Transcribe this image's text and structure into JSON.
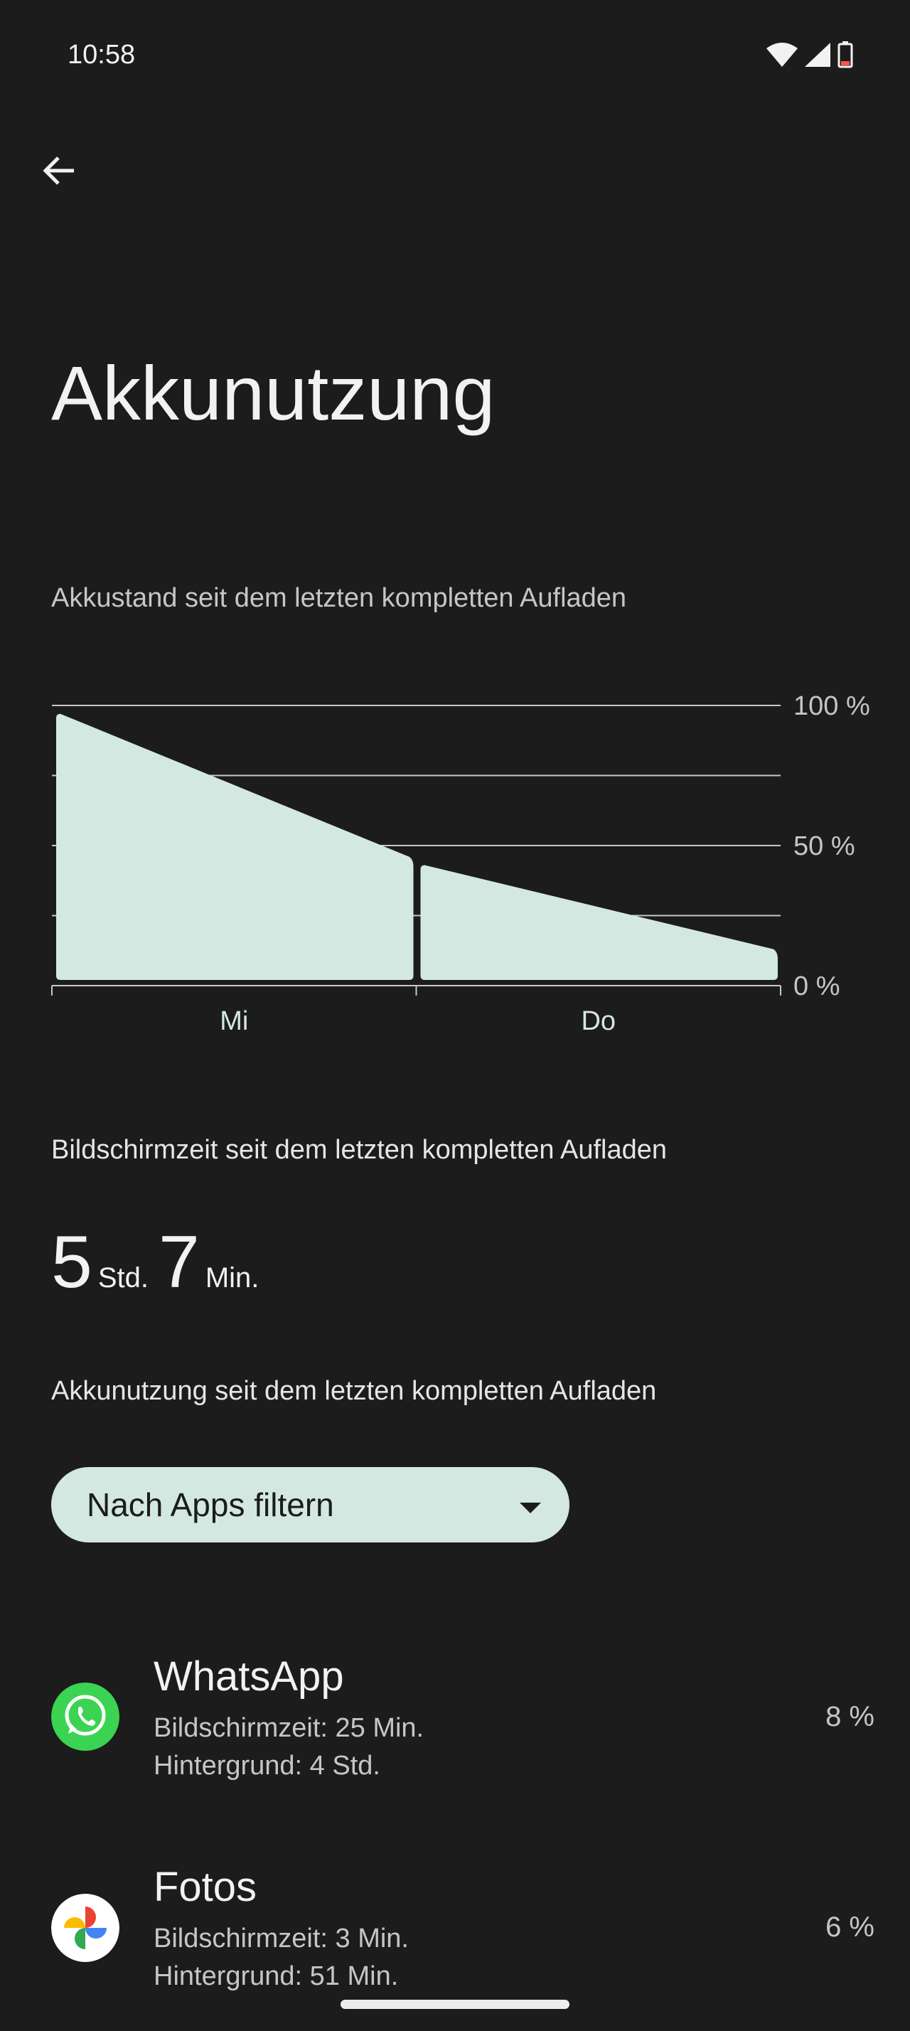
{
  "status_bar": {
    "time": "10:58",
    "icons": [
      "wifi-icon",
      "signal-icon",
      "battery-low-icon"
    ],
    "battery_color": "#ff5449"
  },
  "header": {
    "back_icon": "arrow-back-icon",
    "title": "Akkunutzung"
  },
  "chart_section": {
    "subtitle": "Akkustand seit dem letzten kompletten Aufladen"
  },
  "chart_data": {
    "type": "area",
    "title": "",
    "ylim": [
      0,
      100
    ],
    "y_ticks": [
      0,
      25,
      50,
      75,
      100
    ],
    "y_tick_labels": [
      "100 %",
      "50 %",
      "0 %"
    ],
    "x_tick_labels": [
      "Mi",
      "Do"
    ],
    "grid": true,
    "fill_color": "#d3e8e1",
    "segments": [
      {
        "day": "Mi",
        "start": 97,
        "end": 46
      },
      {
        "day": "Do",
        "start": 43,
        "end": 13
      }
    ]
  },
  "screen_time": {
    "heading": "Bildschirmzeit seit dem letzten kompletten Aufladen",
    "hours": "5",
    "hours_unit": "Std.",
    "minutes": "7",
    "minutes_unit": "Min."
  },
  "usage": {
    "heading": "Akkunutzung seit dem letzten kompletten Aufladen",
    "filter_label": "Nach Apps filtern"
  },
  "apps": [
    {
      "name": "WhatsApp",
      "screen_time": "Bildschirmzeit: 25 Min.",
      "background": "Hintergrund: 4 Std.",
      "percent": "8 %",
      "icon": "whatsapp-icon",
      "color": "#3ad452"
    },
    {
      "name": "Fotos",
      "screen_time": "Bildschirmzeit: 3 Min.",
      "background": "Hintergrund: 51 Min.",
      "percent": "6 %",
      "icon": "google-photos-icon",
      "color": "#ffffff"
    }
  ]
}
